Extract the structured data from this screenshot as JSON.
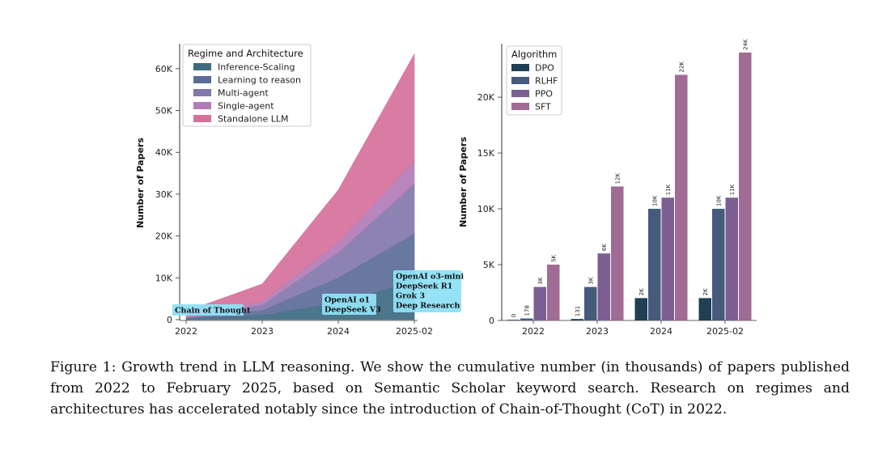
{
  "chart_data": [
    {
      "type": "area",
      "stacked": true,
      "categories": [
        "2022",
        "2023",
        "2024",
        "2025-02"
      ],
      "ylabel": "Number of Papers",
      "ylim": [
        0,
        65000
      ],
      "yticks": [
        0,
        10000,
        20000,
        30000,
        40000,
        50000,
        60000
      ],
      "ytick_labels": [
        "0",
        "10K",
        "20K",
        "30K",
        "40K",
        "50K",
        "60K"
      ],
      "legend_title": "Regime and Architecture",
      "legend_position": "top-left",
      "series": [
        {
          "name": "Inference-Scaling",
          "color": "#3d6a80",
          "values": [
            200,
            1000,
            4000,
            9000
          ]
        },
        {
          "name": "Learning to reason",
          "color": "#5b6c96",
          "values": [
            100,
            1200,
            6000,
            11500
          ]
        },
        {
          "name": "Multi-agent",
          "color": "#8278ab",
          "values": [
            150,
            1300,
            6000,
            12000
          ]
        },
        {
          "name": "Single-agent",
          "color": "#b27cb6",
          "values": [
            150,
            900,
            2500,
            5500
          ]
        },
        {
          "name": "Standalone LLM",
          "color": "#d6719c",
          "values": [
            1400,
            4100,
            12500,
            25500
          ]
        }
      ],
      "annotations": [
        {
          "at": "2022",
          "lines": [
            "Chain of Thought"
          ]
        },
        {
          "at": "2024",
          "lines": [
            "OpenAI o1",
            "DeepSeek V3"
          ]
        },
        {
          "at": "2025-02",
          "lines": [
            "OpenAI o3-mini",
            "DeepSeek R1",
            "Grok 3",
            "Deep Research"
          ]
        }
      ]
    },
    {
      "type": "bar",
      "categories": [
        "2022",
        "2023",
        "2024",
        "2025-02"
      ],
      "ylabel": "Number of Papers",
      "ylim": [
        0,
        24500
      ],
      "yticks": [
        0,
        5000,
        10000,
        15000,
        20000
      ],
      "ytick_labels": [
        "0",
        "5K",
        "10K",
        "15K",
        "20K"
      ],
      "legend_title": "Algorithm",
      "legend_position": "top-left",
      "series": [
        {
          "name": "DPO",
          "color": "#1f3f55",
          "values": [
            0,
            131,
            2000,
            2000
          ],
          "labels": [
            "0",
            "131",
            "2K",
            "2K"
          ]
        },
        {
          "name": "RLHF",
          "color": "#465a7c",
          "values": [
            178,
            3000,
            10000,
            10000
          ],
          "labels": [
            "178",
            "3K",
            "10K",
            "10K"
          ]
        },
        {
          "name": "PPO",
          "color": "#7b5e92",
          "values": [
            3000,
            6000,
            11000,
            11000
          ],
          "labels": [
            "3K",
            "6K",
            "11K",
            "11K"
          ]
        },
        {
          "name": "SFT",
          "color": "#a06b95",
          "values": [
            5000,
            12000,
            22000,
            24000
          ],
          "labels": [
            "5K",
            "12K",
            "22K",
            "24K"
          ]
        }
      ]
    }
  ],
  "caption": "Figure 1:  Growth trend in LLM reasoning.  We show the cumulative number (in thousands) of papers published from 2022 to February 2025, based on Semantic Scholar keyword search. Research on regimes and architectures has accelerated notably since the introduction of Chain-of-Thought (CoT) in 2022."
}
